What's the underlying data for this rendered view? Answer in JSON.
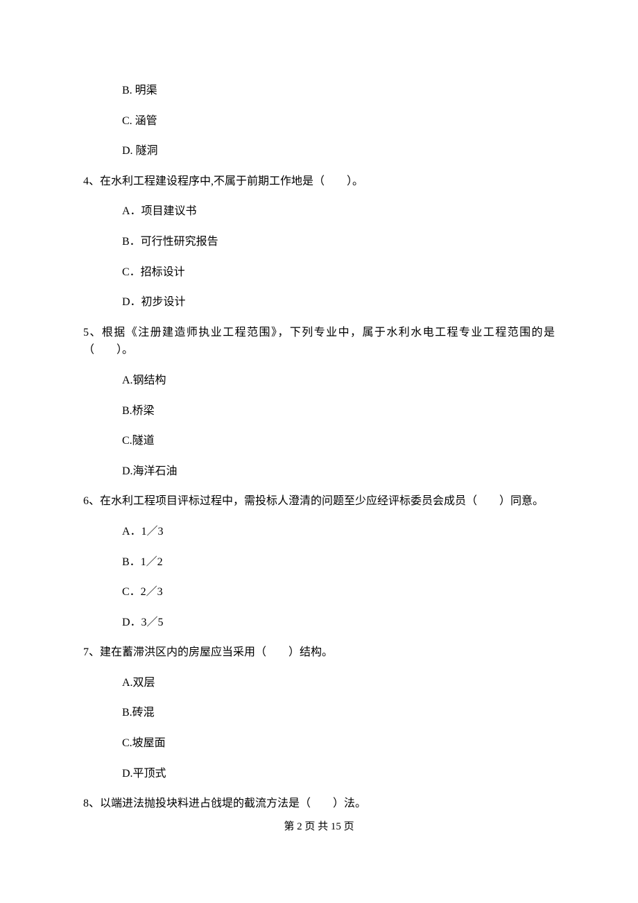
{
  "options_pre": [
    "B. 明渠",
    "C. 涵管",
    "D. 隧洞"
  ],
  "questions": [
    {
      "text": "4、在水利工程建设程序中,不属于前期工作地是（　　）。",
      "options": [
        "A．项目建议书",
        "B．可行性研究报告",
        "C．招标设计",
        "D．初步设计"
      ]
    },
    {
      "text": "5、根据《注册建造师执业工程范围》，下列专业中，属于水利水电工程专业工程范围的是（　　）。",
      "options": [
        "A.钢结构",
        "B.桥梁",
        "C.隧道",
        "D.海洋石油"
      ]
    },
    {
      "text": "6、在水利工程项目评标过程中，需投标人澄清的问题至少应经评标委员会成员（　　）同意。",
      "options": [
        "A．1／3",
        "B．1／2",
        "C．2／3",
        "D．3／5"
      ]
    },
    {
      "text": "7、建在蓄滞洪区内的房屋应当采用（　　）结构。",
      "options": [
        "A.双层",
        "B.砖混",
        "C.坡屋面",
        "D.平顶式"
      ]
    }
  ],
  "last_question": "8、以端进法抛投块料进占戗堤的截流方法是（　　）法。",
  "footer": "第 2 页 共 15 页"
}
